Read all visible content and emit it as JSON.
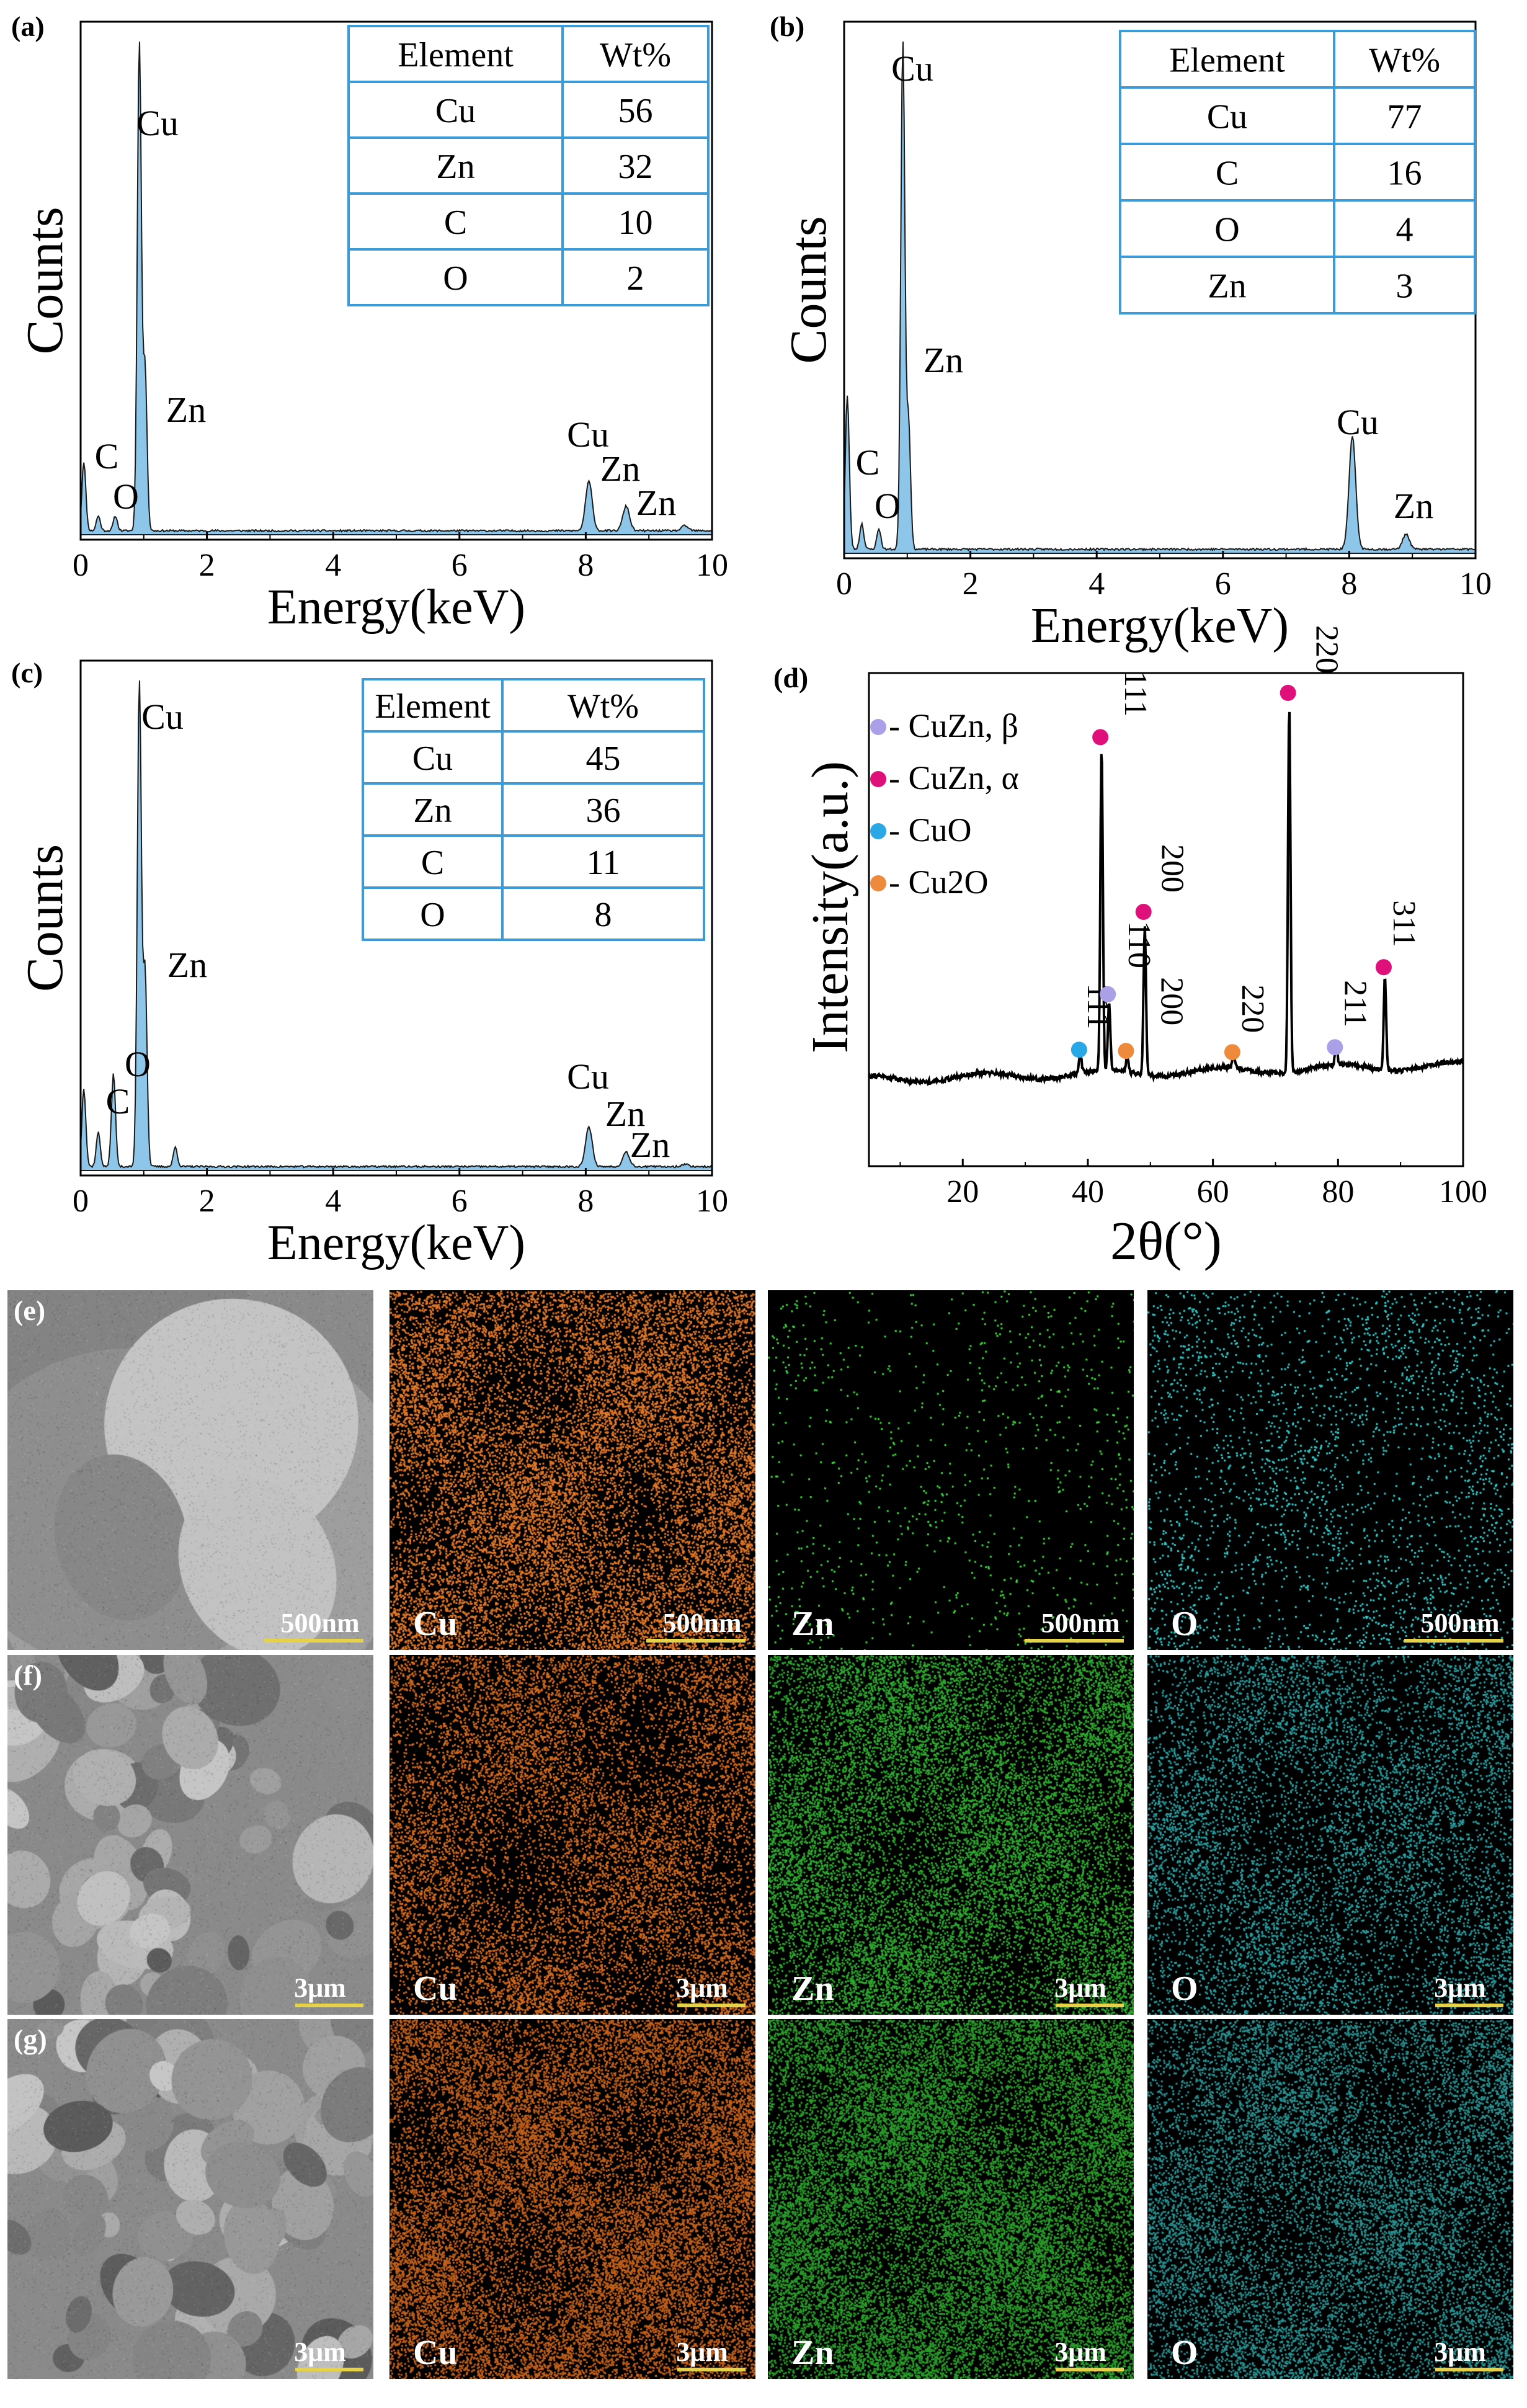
{
  "chart_data": [
    {
      "panel": "(a)",
      "type": "line",
      "xlabel": "Energy(keV)",
      "ylabel": "Counts",
      "xlim": [
        0,
        10
      ],
      "xticks": [
        "0",
        "2",
        "4",
        "6",
        "8",
        "10"
      ],
      "peaks": [
        {
          "label": "C",
          "x": 0.05,
          "y": 0.14
        },
        {
          "label": "O",
          "x": 0.28,
          "y": 0.03
        },
        {
          "label": "",
          "x": 0.55,
          "y": 0.03
        },
        {
          "label": "Cu",
          "x": 0.93,
          "y": 1.0
        },
        {
          "label": "Zn",
          "x": 1.02,
          "y": 0.33
        },
        {
          "label": "Cu",
          "x": 8.05,
          "y": 0.1
        },
        {
          "label": "Zn",
          "x": 8.64,
          "y": 0.05
        },
        {
          "label": "Zn",
          "x": 9.57,
          "y": 0.01
        }
      ],
      "peak_labels": [
        "Cu",
        "Zn",
        "C",
        "O",
        "Cu",
        "Zn",
        "Zn"
      ],
      "table": {
        "headers": [
          "Element",
          "Wt%"
        ],
        "rows": [
          [
            "Cu",
            "56"
          ],
          [
            "Zn",
            "32"
          ],
          [
            "C",
            "10"
          ],
          [
            "O",
            "2"
          ]
        ]
      }
    },
    {
      "panel": "(b)",
      "type": "line",
      "xlabel": "Energy(keV)",
      "ylabel": "Counts",
      "xlim": [
        0,
        10
      ],
      "xticks": [
        "0",
        "2",
        "4",
        "6",
        "8",
        "10"
      ],
      "peaks": [
        {
          "label": "C",
          "x": 0.05,
          "y": 0.3
        },
        {
          "label": "O",
          "x": 0.28,
          "y": 0.05
        },
        {
          "label": "",
          "x": 0.55,
          "y": 0.04
        },
        {
          "label": "Cu",
          "x": 0.93,
          "y": 1.0
        },
        {
          "label": "Zn",
          "x": 1.02,
          "y": 0.25
        },
        {
          "label": "Cu",
          "x": 8.05,
          "y": 0.22
        },
        {
          "label": "Zn",
          "x": 8.9,
          "y": 0.03
        }
      ],
      "peak_labels": [
        "Cu",
        "Zn",
        "C",
        "O",
        "Cu",
        "Zn"
      ],
      "table": {
        "headers": [
          "Element",
          "Wt%"
        ],
        "rows": [
          [
            "Cu",
            "77"
          ],
          [
            "C",
            "16"
          ],
          [
            "O",
            "4"
          ],
          [
            "Zn",
            "3"
          ]
        ]
      }
    },
    {
      "panel": "(c)",
      "type": "line",
      "xlabel": "Energy(keV)",
      "ylabel": "Counts",
      "xlim": [
        0,
        10
      ],
      "xticks": [
        "0",
        "2",
        "4",
        "6",
        "8",
        "10"
      ],
      "peaks": [
        {
          "label": "C",
          "x": 0.05,
          "y": 0.16
        },
        {
          "label": "",
          "x": 0.28,
          "y": 0.07
        },
        {
          "label": "O",
          "x": 0.52,
          "y": 0.19
        },
        {
          "label": "Cu",
          "x": 0.93,
          "y": 1.0
        },
        {
          "label": "Zn",
          "x": 1.02,
          "y": 0.4
        },
        {
          "label": "",
          "x": 1.5,
          "y": 0.04
        },
        {
          "label": "Cu",
          "x": 8.05,
          "y": 0.08
        },
        {
          "label": "Zn",
          "x": 8.64,
          "y": 0.03
        },
        {
          "label": "Zn",
          "x": 9.57,
          "y": 0.005
        }
      ],
      "peak_labels": [
        "Cu",
        "Zn",
        "O",
        "C",
        "Cu",
        "Zn",
        "Zn"
      ],
      "table": {
        "headers": [
          "Element",
          "Wt%"
        ],
        "rows": [
          [
            "Cu",
            "45"
          ],
          [
            "Zn",
            "36"
          ],
          [
            "C",
            "11"
          ],
          [
            "O",
            "8"
          ]
        ]
      }
    },
    {
      "panel": "(d)",
      "type": "line",
      "xlabel": "2θ(°)",
      "ylabel": "Intensity(a.u.)",
      "xlim": [
        5,
        100
      ],
      "xticks": [
        "20",
        "40",
        "60",
        "80",
        "100"
      ],
      "legend": [
        {
          "label": "- CuZn, β",
          "color": "#a9a0e8"
        },
        {
          "label": "- CuZn, α",
          "color": "#e0107a"
        },
        {
          "label": "- CuO",
          "color": "#2aa8e6"
        },
        {
          "label": "- Cu2O",
          "color": "#ee8a3c"
        }
      ],
      "peaks": [
        {
          "x": 38.8,
          "y": 0.05
        },
        {
          "x": 42.2,
          "y": 0.88
        },
        {
          "x": 43.4,
          "y": 0.18
        },
        {
          "x": 46.3,
          "y": 0.04
        },
        {
          "x": 49.1,
          "y": 0.4
        },
        {
          "x": 63.3,
          "y": 0.04
        },
        {
          "x": 72.2,
          "y": 1.0
        },
        {
          "x": 79.7,
          "y": 0.05
        },
        {
          "x": 87.5,
          "y": 0.25
        }
      ],
      "markers": [
        {
          "x": 38.8,
          "series": "CuO",
          "label": "111"
        },
        {
          "x": 42.2,
          "series": "CuZn, α",
          "label": "111"
        },
        {
          "x": 43.4,
          "series": "CuZn, β",
          "label": "110"
        },
        {
          "x": 46.3,
          "series": "Cu2O",
          "label": "200"
        },
        {
          "x": 49.1,
          "series": "CuZn, α",
          "label": "200"
        },
        {
          "x": 63.3,
          "series": "Cu2O",
          "label": "220"
        },
        {
          "x": 72.2,
          "series": "CuZn, α",
          "label": "220"
        },
        {
          "x": 79.7,
          "series": "CuZn, β",
          "label": "211"
        },
        {
          "x": 87.5,
          "series": "CuZn, α",
          "label": "311"
        }
      ],
      "legend_x": "top-left"
    }
  ],
  "panels": {
    "a": "(a)",
    "b": "(b)",
    "c": "(c)",
    "d": "(d)"
  },
  "maps": {
    "rows": [
      {
        "label": "(e)",
        "scale": "500nm",
        "tiles": [
          {
            "element": "",
            "color": "#888888",
            "kind": "sem"
          },
          {
            "element": "Cu",
            "color": "#e0782a",
            "kind": "map",
            "density": 0.55
          },
          {
            "element": "Zn",
            "color": "#3ddc3d",
            "kind": "map",
            "density": 0.03
          },
          {
            "element": "O",
            "color": "#33cccc",
            "kind": "map",
            "density": 0.09
          }
        ]
      },
      {
        "label": "(f)",
        "scale": "3μm",
        "tiles": [
          {
            "element": "",
            "color": "#888888",
            "kind": "sem"
          },
          {
            "element": "Cu",
            "color": "#d06a20",
            "kind": "map",
            "density": 0.45
          },
          {
            "element": "Zn",
            "color": "#2fa82f",
            "kind": "map",
            "density": 0.55
          },
          {
            "element": "O",
            "color": "#2a9ea0",
            "kind": "map",
            "density": 0.3
          }
        ]
      },
      {
        "label": "(g)",
        "scale": "3μm",
        "tiles": [
          {
            "element": "",
            "color": "#888888",
            "kind": "sem"
          },
          {
            "element": "Cu",
            "color": "#c0601c",
            "kind": "map",
            "density": 0.7
          },
          {
            "element": "Zn",
            "color": "#2a9a2a",
            "kind": "map",
            "density": 0.75
          },
          {
            "element": "O",
            "color": "#2a9090",
            "kind": "map",
            "density": 0.45
          }
        ]
      }
    ]
  },
  "colors": {
    "spectrum_fill": "#8ec6ea",
    "spectrum_line": "#1a1a1a",
    "table_border": "#3b9ad8",
    "xrd_line": "#000000"
  }
}
